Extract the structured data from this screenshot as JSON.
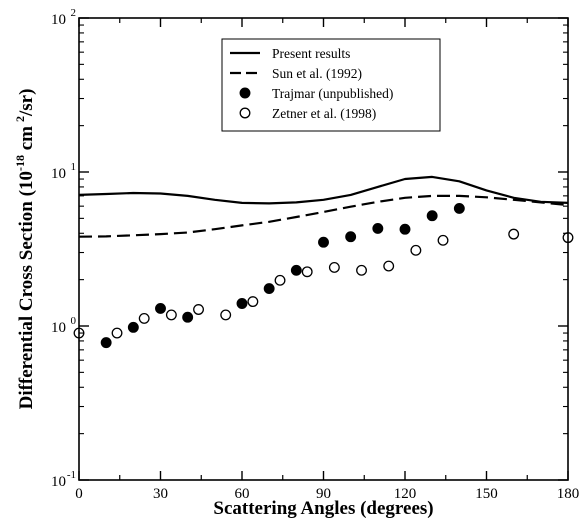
{
  "chart_data": {
    "type": "scatter",
    "xlabel": "Scattering Angles (degrees)",
    "ylabel_parts": [
      "Differential Cross Section (10",
      "-18",
      " cm",
      "2",
      "/sr)"
    ],
    "xlim": [
      0,
      180
    ],
    "ylim": [
      0.1,
      100
    ],
    "y_scale": "log",
    "x_ticks": [
      0,
      30,
      60,
      90,
      120,
      150,
      180
    ],
    "x_tick_labels": [
      "0",
      "30",
      "60",
      "90",
      "120",
      "150",
      "180"
    ],
    "y_ticks": [
      0.1,
      1,
      10,
      100
    ],
    "y_tick_labels": [
      {
        "base": "10",
        "exp": "-1"
      },
      {
        "base": "10",
        "exp": "0"
      },
      {
        "base": "10",
        "exp": "1"
      },
      {
        "base": "10",
        "exp": "2"
      }
    ],
    "legend_position": "top-center",
    "series": [
      {
        "name": "Present results",
        "style": "solid-line",
        "x": [
          0,
          10,
          20,
          30,
          40,
          50,
          60,
          70,
          80,
          90,
          100,
          110,
          120,
          130,
          140,
          150,
          160,
          170,
          180
        ],
        "y": [
          7.1,
          7.2,
          7.3,
          7.25,
          7.0,
          6.6,
          6.3,
          6.25,
          6.35,
          6.6,
          7.1,
          8.0,
          9.0,
          9.3,
          8.7,
          7.6,
          6.8,
          6.4,
          6.3
        ]
      },
      {
        "name": "Sun et al. (1992)",
        "style": "dashed-line",
        "x": [
          0,
          10,
          20,
          30,
          40,
          50,
          60,
          70,
          80,
          90,
          100,
          110,
          120,
          130,
          140,
          150,
          160,
          170,
          180
        ],
        "y": [
          3.8,
          3.82,
          3.88,
          3.95,
          4.05,
          4.25,
          4.5,
          4.75,
          5.1,
          5.5,
          5.95,
          6.4,
          6.8,
          7.0,
          7.0,
          6.85,
          6.6,
          6.35,
          6.1
        ]
      },
      {
        "name": "Trajmar (unpublished)",
        "style": "filled-circle",
        "x": [
          10,
          20,
          30,
          40,
          60,
          70,
          80,
          90,
          100,
          110,
          120,
          130,
          140
        ],
        "y": [
          0.78,
          0.98,
          1.3,
          1.14,
          1.4,
          1.75,
          2.3,
          3.5,
          3.8,
          4.3,
          4.25,
          5.2,
          5.8
        ]
      },
      {
        "name": "Zetner et al. (1998)",
        "style": "open-circle",
        "x": [
          0,
          14,
          24,
          34,
          44,
          54,
          64,
          74,
          84,
          94,
          104,
          114,
          124,
          134,
          160,
          180
        ],
        "y": [
          0.9,
          0.9,
          1.12,
          1.18,
          1.28,
          1.18,
          1.44,
          1.98,
          2.25,
          2.4,
          2.3,
          2.45,
          3.1,
          3.6,
          3.95,
          3.75
        ]
      }
    ]
  }
}
